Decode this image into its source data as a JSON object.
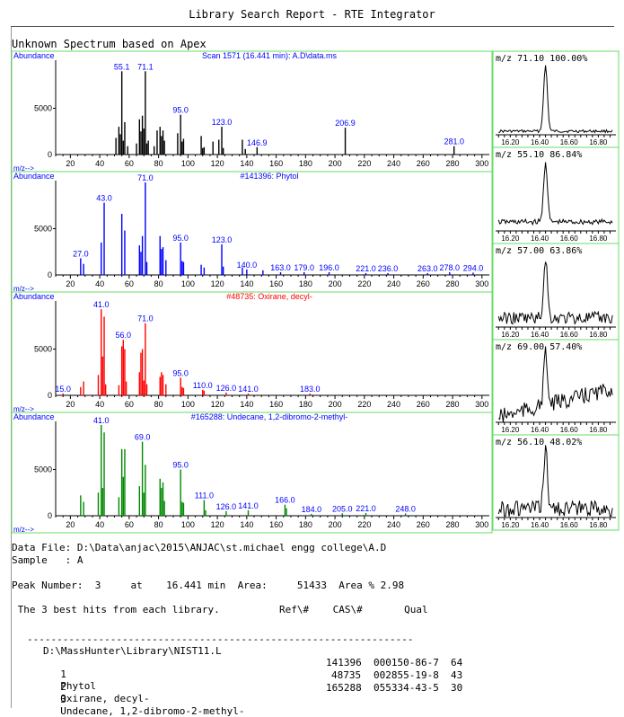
{
  "report": {
    "title": "Library Search Report - RTE Integrator",
    "unknown_label": "Unknown Spectrum based on Apex",
    "data_file": "Data File: D:\\Data\\anjac\\2015\\ANJAC\\st.michael engg college\\A.D",
    "sample": "Sample   : A",
    "peak_line": "Peak Number:  3     at    16.441 min  Area:     51433  Area % 2.98",
    "hits_header": " The 3 best hits from each library.          Ref\\#    CAS\\#       Qual",
    "library_path": "D:\\MassHunter\\Library\\NIST11.L"
  },
  "colors": {
    "border": "#66dd66",
    "unknown": "#000000",
    "phytol": "#0000ff",
    "oxirane": "#ff0000",
    "undecane": "#008800",
    "label": "#0000ff",
    "red_title": "#ff0000"
  },
  "hits": [
    {
      "num": "1",
      "name": "Phytol",
      "ref": "141396",
      "cas": "000150-86-7",
      "qual": "64"
    },
    {
      "num": "2",
      "name": "Oxirane, decyl-",
      "ref": "48735",
      "cas": "002855-19-8",
      "qual": "43"
    },
    {
      "num": "3",
      "name": "Undecane, 1,2-dibromo-2-methyl-",
      "ref": "165288",
      "cas": "055334-43-5",
      "qual": "30"
    }
  ],
  "chart_data": [
    {
      "type": "bar",
      "title": "Scan 1571 (16.441 min): A.D\\data.ms",
      "ylabel": "Abundance",
      "xlabel": "m/z-->",
      "xlim": [
        10,
        305
      ],
      "ylim": [
        0,
        10000
      ],
      "xticks": [
        20,
        40,
        60,
        80,
        100,
        120,
        140,
        160,
        180,
        200,
        220,
        240,
        260,
        280,
        300
      ],
      "yticks": [
        5000
      ],
      "peaks": [
        [
          51,
          1800
        ],
        [
          53,
          3000
        ],
        [
          54,
          2200
        ],
        [
          55,
          9000
        ],
        [
          56,
          1500
        ],
        [
          57,
          3500
        ],
        [
          59,
          900
        ],
        [
          65,
          1200
        ],
        [
          67,
          3800
        ],
        [
          68,
          2500
        ],
        [
          69,
          4200
        ],
        [
          70,
          2800
        ],
        [
          71,
          9000
        ],
        [
          72,
          1200
        ],
        [
          73,
          1500
        ],
        [
          77,
          900
        ],
        [
          79,
          2600
        ],
        [
          81,
          3000
        ],
        [
          82,
          2000
        ],
        [
          83,
          2600
        ],
        [
          84,
          1500
        ],
        [
          93,
          2300
        ],
        [
          95,
          4300
        ],
        [
          96,
          1400
        ],
        [
          97,
          1700
        ],
        [
          109,
          2000
        ],
        [
          110,
          700
        ],
        [
          111,
          800
        ],
        [
          117,
          1400
        ],
        [
          121,
          1600
        ],
        [
          123,
          3000
        ],
        [
          124,
          700
        ],
        [
          137,
          1600
        ],
        [
          139,
          600
        ],
        [
          147,
          800
        ],
        [
          207,
          2900
        ],
        [
          281,
          900
        ]
      ],
      "labels": [
        [
          55,
          "55.1"
        ],
        [
          71,
          "71.1"
        ],
        [
          95,
          "95.0"
        ],
        [
          123,
          "123.0"
        ],
        [
          147,
          "146.9"
        ],
        [
          207,
          "206.9"
        ],
        [
          281,
          "281.0"
        ]
      ]
    },
    {
      "type": "bar",
      "title": "#141396: Phytol",
      "ylabel": "Abundance",
      "xlabel": "m/z-->",
      "xlim": [
        10,
        305
      ],
      "ylim": [
        0,
        10000
      ],
      "xticks": [
        20,
        40,
        60,
        80,
        100,
        120,
        140,
        160,
        180,
        200,
        220,
        240,
        260,
        280,
        300
      ],
      "yticks": [
        5000
      ],
      "peaks": [
        [
          27,
          1800
        ],
        [
          29,
          1200
        ],
        [
          41,
          3500
        ],
        [
          43,
          7800
        ],
        [
          55,
          6600
        ],
        [
          57,
          4800
        ],
        [
          67,
          3200
        ],
        [
          68,
          2500
        ],
        [
          69,
          4200
        ],
        [
          71,
          10000
        ],
        [
          72,
          1400
        ],
        [
          81,
          4200
        ],
        [
          82,
          2800
        ],
        [
          83,
          3000
        ],
        [
          85,
          1600
        ],
        [
          95,
          3500
        ],
        [
          96,
          1500
        ],
        [
          97,
          1400
        ],
        [
          109,
          1100
        ],
        [
          111,
          800
        ],
        [
          123,
          3300
        ],
        [
          124,
          900
        ],
        [
          137,
          800
        ],
        [
          140,
          600
        ],
        [
          151,
          500
        ],
        [
          163,
          300
        ],
        [
          179,
          300
        ],
        [
          196,
          300
        ],
        [
          221,
          200
        ],
        [
          236,
          200
        ],
        [
          263,
          200
        ],
        [
          278,
          300
        ],
        [
          294,
          250
        ]
      ],
      "labels": [
        [
          27,
          "27.0"
        ],
        [
          43,
          "43.0"
        ],
        [
          71,
          "71.0"
        ],
        [
          95,
          "95.0"
        ],
        [
          123,
          "123.0"
        ],
        [
          140,
          "140.0"
        ],
        [
          163,
          "163.0"
        ],
        [
          179,
          "179.0"
        ],
        [
          196,
          "196.0"
        ],
        [
          221,
          "221.0"
        ],
        [
          236,
          "236.0"
        ],
        [
          263,
          "263.0"
        ],
        [
          278,
          "278.0"
        ],
        [
          294,
          "294.0"
        ]
      ]
    },
    {
      "type": "bar",
      "title": "#48735: Oxirane, decyl-",
      "ylabel": "Abundance",
      "xlabel": "m/z-->",
      "xlim": [
        10,
        305
      ],
      "ylim": [
        0,
        10000
      ],
      "xticks": [
        20,
        40,
        60,
        80,
        100,
        120,
        140,
        160,
        180,
        200,
        220,
        240,
        260,
        280,
        300
      ],
      "yticks": [
        5000
      ],
      "peaks": [
        [
          15,
          200
        ],
        [
          27,
          900
        ],
        [
          29,
          1500
        ],
        [
          39,
          2200
        ],
        [
          41,
          9300
        ],
        [
          42,
          4200
        ],
        [
          43,
          8500
        ],
        [
          44,
          1200
        ],
        [
          53,
          1100
        ],
        [
          55,
          5300
        ],
        [
          56,
          6000
        ],
        [
          57,
          5000
        ],
        [
          58,
          1500
        ],
        [
          67,
          2500
        ],
        [
          68,
          4600
        ],
        [
          69,
          5000
        ],
        [
          70,
          1600
        ],
        [
          71,
          7800
        ],
        [
          72,
          1200
        ],
        [
          81,
          2000
        ],
        [
          82,
          2500
        ],
        [
          83,
          2200
        ],
        [
          85,
          1200
        ],
        [
          95,
          1900
        ],
        [
          96,
          900
        ],
        [
          97,
          800
        ],
        [
          110,
          600
        ],
        [
          111,
          500
        ],
        [
          126,
          300
        ],
        [
          141,
          200
        ],
        [
          183,
          200
        ]
      ],
      "labels": [
        [
          15,
          "15.0"
        ],
        [
          41,
          "41.0"
        ],
        [
          56,
          "56.0"
        ],
        [
          71,
          "71.0"
        ],
        [
          95,
          "95.0"
        ],
        [
          110,
          "110.0"
        ],
        [
          126,
          "126.0"
        ],
        [
          141,
          "141.0"
        ],
        [
          183,
          "183.0"
        ]
      ]
    },
    {
      "type": "bar",
      "title": "#165288: Undecane, 1,2-dibromo-2-methyl-",
      "ylabel": "Abundance",
      "xlabel": "m/z-->",
      "xlim": [
        10,
        305
      ],
      "ylim": [
        0,
        10000
      ],
      "xticks": [
        20,
        40,
        60,
        80,
        100,
        120,
        140,
        160,
        180,
        200,
        220,
        240,
        260,
        280,
        300
      ],
      "yticks": [
        5000
      ],
      "peaks": [
        [
          27,
          2200
        ],
        [
          29,
          1500
        ],
        [
          39,
          2500
        ],
        [
          41,
          9800
        ],
        [
          42,
          3000
        ],
        [
          43,
          9000
        ],
        [
          53,
          2000
        ],
        [
          55,
          7200
        ],
        [
          56,
          4200
        ],
        [
          57,
          7200
        ],
        [
          67,
          3200
        ],
        [
          69,
          8000
        ],
        [
          70,
          2500
        ],
        [
          71,
          5500
        ],
        [
          81,
          4000
        ],
        [
          82,
          3000
        ],
        [
          83,
          3600
        ],
        [
          84,
          1600
        ],
        [
          95,
          5000
        ],
        [
          96,
          1500
        ],
        [
          97,
          1400
        ],
        [
          111,
          1700
        ],
        [
          112,
          600
        ],
        [
          126,
          500
        ],
        [
          141,
          600
        ],
        [
          166,
          1200
        ],
        [
          167,
          800
        ],
        [
          184,
          200
        ],
        [
          205,
          250
        ],
        [
          221,
          300
        ],
        [
          248,
          250
        ]
      ],
      "labels": [
        [
          41,
          "41.0"
        ],
        [
          69,
          "69.0"
        ],
        [
          95,
          "95.0"
        ],
        [
          111,
          "111.0"
        ],
        [
          126,
          "126.0"
        ],
        [
          141,
          "141.0"
        ],
        [
          166,
          "166.0"
        ],
        [
          184,
          "184.0"
        ],
        [
          205,
          "205.0"
        ],
        [
          221,
          "221.0"
        ],
        [
          248,
          "248.0"
        ]
      ]
    },
    {
      "type": "line",
      "title": "m/z  71.10  100.00%",
      "xticks": [
        16.2,
        16.4,
        16.6,
        16.8
      ],
      "xlim": [
        16.1,
        16.92
      ],
      "ylim": [
        0,
        100
      ],
      "shape": "clean"
    },
    {
      "type": "line",
      "title": "m/z  55.10   86.84%",
      "xticks": [
        16.2,
        16.4,
        16.6,
        16.8
      ],
      "xlim": [
        16.1,
        16.92
      ],
      "ylim": [
        0,
        100
      ],
      "shape": "low"
    },
    {
      "type": "line",
      "title": "m/z  57.00   63.86%",
      "xticks": [
        16.2,
        16.4,
        16.6,
        16.8
      ],
      "xlim": [
        16.1,
        16.92
      ],
      "ylim": [
        0,
        100
      ],
      "shape": "noisy"
    },
    {
      "type": "line",
      "title": "m/z  69.00   57.40%",
      "xticks": [
        16.2,
        16.4,
        16.6,
        16.8
      ],
      "xlim": [
        16.1,
        16.92
      ],
      "ylim": [
        0,
        100
      ],
      "shape": "rising"
    },
    {
      "type": "line",
      "title": "m/z  56.10   48.02%",
      "xticks": [
        16.2,
        16.4,
        16.6,
        16.8
      ],
      "xlim": [
        16.1,
        16.92
      ],
      "ylim": [
        0,
        100
      ],
      "shape": "noisy2"
    }
  ]
}
